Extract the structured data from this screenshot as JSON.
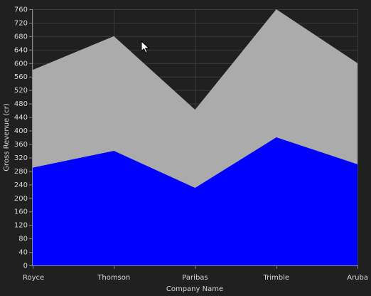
{
  "chart_data": {
    "type": "area",
    "stacked": true,
    "categories": [
      "Royce",
      "Thomson",
      "Paribas",
      "Trimble",
      "Aruba"
    ],
    "series": [
      {
        "values": [
          290,
          340,
          230,
          380,
          300
        ],
        "color": "#0000ff"
      },
      {
        "values": [
          290,
          340,
          232,
          380,
          300
        ],
        "color": "#ababab"
      }
    ],
    "xlabel": "Company Name",
    "ylabel": "Gross Revenue (cr)",
    "ylim": [
      0,
      760
    ],
    "yticks": [
      0,
      40,
      80,
      120,
      160,
      200,
      240,
      280,
      320,
      360,
      400,
      440,
      480,
      520,
      560,
      600,
      640,
      680,
      720,
      760
    ],
    "grid": true,
    "legend": "none",
    "background": "#202020",
    "gridColor": "#3a3a3a",
    "axisColor": "#8a8a8a",
    "textColor": "#d8d8d8"
  },
  "cursor": {
    "icon": "mouse-pointer-icon"
  }
}
